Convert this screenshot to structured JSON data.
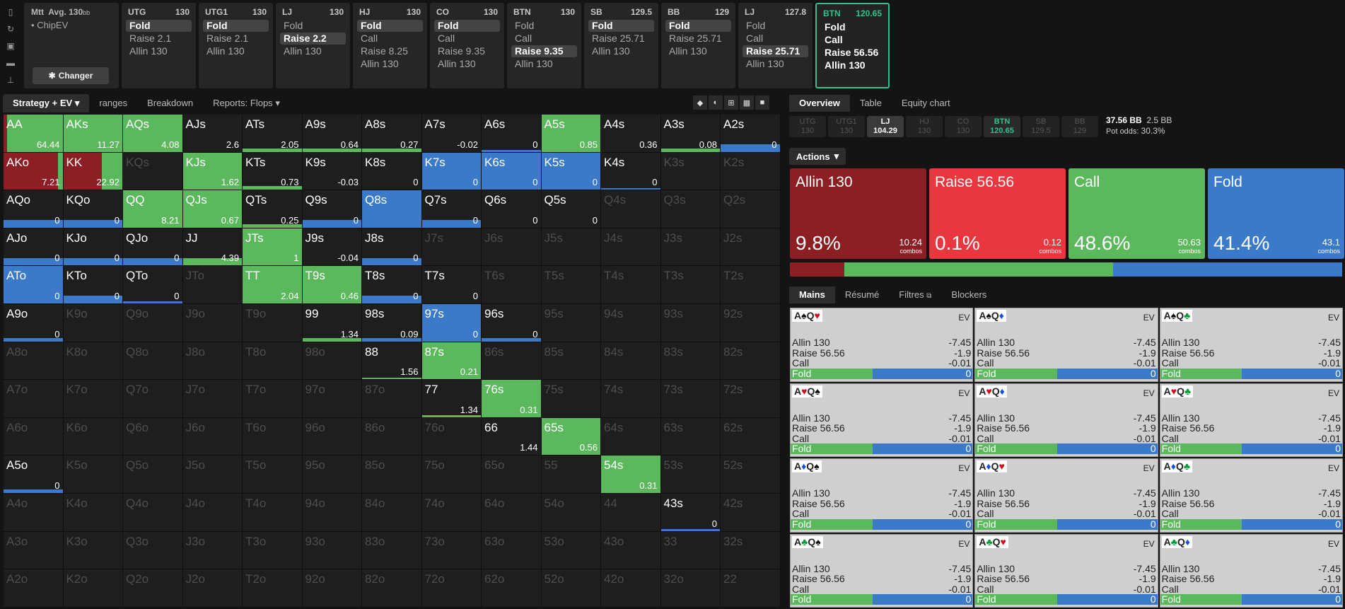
{
  "colors": {
    "allin": "#8b1f24",
    "raise": "#e8373e",
    "call": "#5cb85c",
    "fold": "#3a7ac9",
    "active": "#2bc48a"
  },
  "sidebar_icons": [
    "bookmark-icon",
    "history-icon",
    "save-icon",
    "car-icon",
    "align-icon"
  ],
  "mtt": {
    "title": "Mtt",
    "avg": "Avg. 130",
    "avg_unit": "bb",
    "bullet": "•",
    "mode": "ChipEV",
    "change_label": "Changer"
  },
  "positions": [
    {
      "name": "UTG",
      "stack": "130",
      "options": [
        "Fold",
        "Raise 2.1",
        "Allin 130"
      ],
      "selected": 0
    },
    {
      "name": "UTG1",
      "stack": "130",
      "options": [
        "Fold",
        "Raise 2.1",
        "Allin 130"
      ],
      "selected": 0
    },
    {
      "name": "LJ",
      "stack": "130",
      "options": [
        "Fold",
        "Raise 2.2",
        "Allin 130"
      ],
      "selected": 1
    },
    {
      "name": "HJ",
      "stack": "130",
      "options": [
        "Fold",
        "Call",
        "Raise 8.25",
        "Allin 130"
      ],
      "selected": 0
    },
    {
      "name": "CO",
      "stack": "130",
      "options": [
        "Fold",
        "Call",
        "Raise 9.35",
        "Allin 130"
      ],
      "selected": 0
    },
    {
      "name": "BTN",
      "stack": "130",
      "options": [
        "Fold",
        "Call",
        "Raise 9.35",
        "Allin 130"
      ],
      "selected": 2
    },
    {
      "name": "SB",
      "stack": "129.5",
      "options": [
        "Fold",
        "Raise 25.71",
        "Allin 130"
      ],
      "selected": 0
    },
    {
      "name": "BB",
      "stack": "129",
      "options": [
        "Fold",
        "Raise 25.71",
        "Allin 130"
      ],
      "selected": 0
    },
    {
      "name": "LJ",
      "stack": "127.8",
      "options": [
        "Fold",
        "Call",
        "Raise 25.71",
        "Allin 130"
      ],
      "selected": 2
    },
    {
      "name": "BTN",
      "stack": "120.65",
      "options": [
        "Fold",
        "Call",
        "Raise 56.56",
        "Allin 130"
      ],
      "selected": -1,
      "active": true
    }
  ],
  "grid_tabs": [
    "Strategy + EV",
    "ranges",
    "Breakdown",
    "Reports: Flops"
  ],
  "grid": [
    [
      "AA|64.44|g",
      "AKs|11.27|g",
      "AQs|4.08|g",
      "AJs|2.6|",
      "ATs|2.05|g10",
      "A9s|0.64|g10",
      "A8s|0.27|g10",
      "A7s|-0.02|",
      "A6s|0|b5",
      "A5s|0.85|g",
      "A4s|0.36|",
      "A3s|0.08|g10",
      "A2s|0|b20"
    ],
    [
      "AKo|7.21|m",
      "KK|22.92|m2",
      "KQs||d",
      "KJs|1.62|g",
      "KTs|0.73|g10",
      "K9s|-0.03|",
      "K8s|0|",
      "K7s|0|b",
      "K6s|0|b",
      "K5s|0|b",
      "K4s|0|b5",
      "K3s||d",
      "K2s||d"
    ],
    [
      "AQo|0|b20",
      "KQo|0|b20",
      "QQ|8.21|g",
      "QJs|0.67|g",
      "QTs|0.25|g10",
      "Q9s|0|b20",
      "Q8s||b",
      "Q7s|0|b20",
      "Q6s|0|",
      "Q5s|0|",
      "Q4s||d",
      "Q3s||d",
      "Q2s||d"
    ],
    [
      "AJo|0|b20",
      "KJo|0|b20",
      "QJo|0|b20",
      "JJ|4.39|g20",
      "JTs|1|g",
      "J9s|-0.04|",
      "J8s|0|b20",
      "J7s||d",
      "J6s||d",
      "J5s||d",
      "J4s||d",
      "J3s||d",
      "J2s||d"
    ],
    [
      "ATo|0|b",
      "KTo|0|b20",
      "QTo|0|b5",
      "JTo||d",
      "TT|2.04|g",
      "T9s|0.46|g",
      "T8s|0|b20",
      "T7s|0|",
      "T6s||d",
      "T5s||d",
      "T4s||d",
      "T3s||d",
      "T2s||d"
    ],
    [
      "A9o|0|b10",
      "K9o||d",
      "Q9o||d",
      "J9o||d",
      "T9o||d",
      "99|1.34|g10",
      "98s|0.09|b10",
      "97s|0|b",
      "96s|0|b10",
      "95s||d",
      "94s||d",
      "93s||d",
      "92s||d"
    ],
    [
      "A8o||d",
      "K8o||d",
      "Q8o||d",
      "J8o||d",
      "T8o||d",
      "98o||d",
      "88|1.56|g5",
      "87s|0.21|g",
      "86s||d",
      "85s||d",
      "84s||d",
      "83s||d",
      "82s||d"
    ],
    [
      "A7o||d",
      "K7o||d",
      "Q7o||d",
      "J7o||d",
      "T7o||d",
      "97o||d",
      "87o||d",
      "77|1.34|g5",
      "76s|0.31|g",
      "75s||d",
      "74s||d",
      "73s||d",
      "72s||d"
    ],
    [
      "A6o||d",
      "K6o||d",
      "Q6o||d",
      "J6o||d",
      "T6o||d",
      "96o||d",
      "86o||d",
      "76o||d",
      "66|1.44|",
      "65s|0.56|g",
      "64s||d",
      "63s||d",
      "62s||d"
    ],
    [
      "A5o|0|b10",
      "K5o||d",
      "Q5o||d",
      "J5o||d",
      "T5o||d",
      "95o||d",
      "85o||d",
      "75o||d",
      "65o||d",
      "55||d",
      "54s|0.31|g",
      "53s||d",
      "52s||d"
    ],
    [
      "A4o||d",
      "K4o||d",
      "Q4o||d",
      "J4o||d",
      "T4o||d",
      "94o||d",
      "84o||d",
      "74o||d",
      "64o||d",
      "54o||d",
      "44||d",
      "43s|0|b5",
      "42s||d"
    ],
    [
      "A3o||d",
      "K3o||d",
      "Q3o||d",
      "J3o||d",
      "T3o||d",
      "93o||d",
      "83o||d",
      "73o||d",
      "63o||d",
      "53o||d",
      "43o||d",
      "33||d",
      "32s||d"
    ],
    [
      "A2o||d",
      "K2o||d",
      "Q2o||d",
      "J2o||d",
      "T2o||d",
      "92o||d",
      "82o||d",
      "72o||d",
      "62o||d",
      "52o||d",
      "42o||d",
      "32o||d",
      "22||d"
    ]
  ],
  "right_tabs": [
    "Overview",
    "Table",
    "Equity chart"
  ],
  "pos_chips": [
    {
      "n": "UTG",
      "v": "130"
    },
    {
      "n": "UTG1",
      "v": "130"
    },
    {
      "n": "LJ",
      "v": "104.29",
      "k": "lj"
    },
    {
      "n": "HJ",
      "v": "130"
    },
    {
      "n": "CO",
      "v": "130"
    },
    {
      "n": "BTN",
      "v": "120.65",
      "k": "btn"
    },
    {
      "n": "SB",
      "v": "129.5"
    },
    {
      "n": "BB",
      "v": "129"
    }
  ],
  "pot": {
    "pot": "37.56 BB",
    "bet": "2.5 BB",
    "odds_label": "Pot odds:",
    "odds": "30.3%"
  },
  "actions_label": "Actions",
  "actions": [
    {
      "name": "Allin 130",
      "pct": "9.8%",
      "combos": "10.24",
      "color": "#8b1f24",
      "freq": 0.098
    },
    {
      "name": "Raise 56.56",
      "pct": "0.1%",
      "combos": "0.12",
      "color": "#e8373e",
      "freq": 0.001
    },
    {
      "name": "Call",
      "pct": "48.6%",
      "combos": "50.63",
      "color": "#5cb85c",
      "freq": 0.486
    },
    {
      "name": "Fold",
      "pct": "41.4%",
      "combos": "43.1",
      "color": "#3a7ac9",
      "freq": 0.414
    }
  ],
  "combos_word": "combos",
  "bottom_tabs": [
    "Mains",
    "Résumé",
    "Filtres",
    "Blockers"
  ],
  "hands": [
    {
      "c1": "A",
      "s1": "♠",
      "k1": "s",
      "c2": "Q",
      "s2": "♥",
      "k2": "h"
    },
    {
      "c1": "A",
      "s1": "♠",
      "k1": "s",
      "c2": "Q",
      "s2": "♦",
      "k2": "d"
    },
    {
      "c1": "A",
      "s1": "♠",
      "k1": "s",
      "c2": "Q",
      "s2": "♣",
      "k2": "c"
    },
    {
      "c1": "A",
      "s1": "♥",
      "k1": "h",
      "c2": "Q",
      "s2": "♠",
      "k2": "s"
    },
    {
      "c1": "A",
      "s1": "♥",
      "k1": "h",
      "c2": "Q",
      "s2": "♦",
      "k2": "d"
    },
    {
      "c1": "A",
      "s1": "♥",
      "k1": "h",
      "c2": "Q",
      "s2": "♣",
      "k2": "c"
    },
    {
      "c1": "A",
      "s1": "♦",
      "k1": "d",
      "c2": "Q",
      "s2": "♠",
      "k2": "s"
    },
    {
      "c1": "A",
      "s1": "♦",
      "k1": "d",
      "c2": "Q",
      "s2": "♥",
      "k2": "h"
    },
    {
      "c1": "A",
      "s1": "♦",
      "k1": "d",
      "c2": "Q",
      "s2": "♣",
      "k2": "c"
    },
    {
      "c1": "A",
      "s1": "♣",
      "k1": "c",
      "c2": "Q",
      "s2": "♠",
      "k2": "s"
    },
    {
      "c1": "A",
      "s1": "♣",
      "k1": "c",
      "c2": "Q",
      "s2": "♥",
      "k2": "h"
    },
    {
      "c1": "A",
      "s1": "♣",
      "k1": "c",
      "c2": "Q",
      "s2": "♦",
      "k2": "d"
    }
  ],
  "hand_ev_label": "EV",
  "hand_rows": [
    {
      "a": "Allin 130",
      "v": "-7.45"
    },
    {
      "a": "Raise 56.56",
      "v": "-1.9"
    },
    {
      "a": "Call",
      "v": "-0.01"
    },
    {
      "a": "Fold",
      "v": "0"
    }
  ],
  "hand_fold_split": 0.45
}
